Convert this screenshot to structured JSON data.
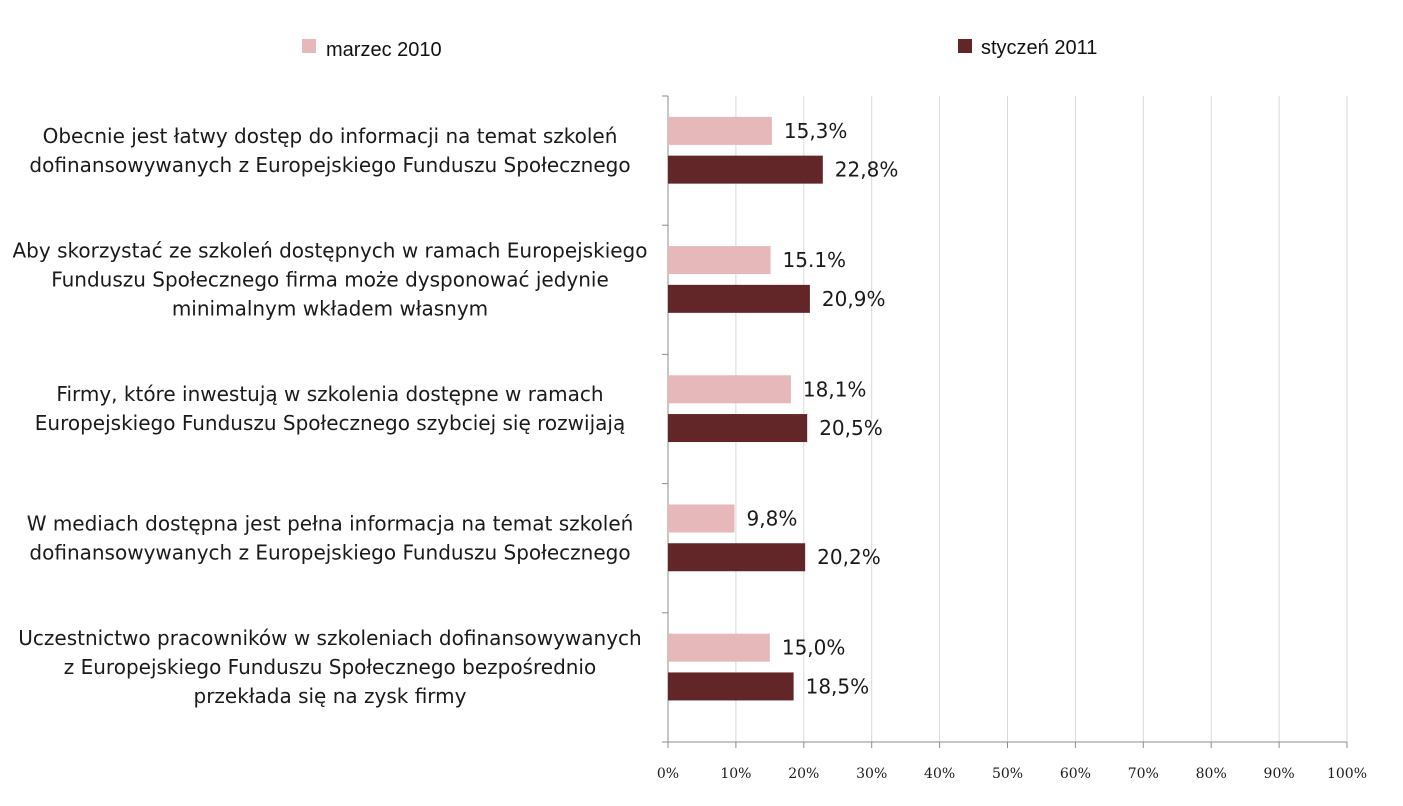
{
  "chart_data": {
    "type": "bar",
    "orientation": "horizontal",
    "categories": [
      [
        "Obecnie jest łatwy dostęp do informacji na temat szkoleń",
        "dofinansowywanych z Europejskiego Funduszu Społecznego"
      ],
      [
        "Aby skorzystać ze szkoleń dostępnych w ramach Europejskiego",
        "Funduszu Społecznego firma może dysponować jedynie",
        "minimalnym wkładem własnym"
      ],
      [
        "Firmy, które inwestują w szkolenia dostępne w ramach",
        "Europejskiego Funduszu Społecznego szybciej się rozwijają"
      ],
      [
        "W mediach dostępna jest pełna informacja na temat szkoleń",
        "dofinansowywanych z Europejskiego Funduszu Społecznego"
      ],
      [
        "Uczestnictwo pracowników w szkoleniach dofinansowywanych",
        "z Europejskiego Funduszu Społecznego bezpośrednio",
        "przekłada się na zysk firmy"
      ]
    ],
    "series": [
      {
        "name": "marzec 2010",
        "color": "#e6b8b9",
        "values": [
          15.3,
          15.1,
          18.1,
          9.8,
          15.0
        ],
        "labels": [
          "15,3%",
          "15.1%",
          "18,1%",
          "9,8%",
          "15,0%"
        ]
      },
      {
        "name": "styczeń 2011",
        "color": "#632628",
        "values": [
          22.8,
          20.9,
          20.5,
          20.2,
          18.5
        ],
        "labels": [
          "22,8%",
          "20,9%",
          "20,5%",
          "20,2%",
          "18,5%"
        ]
      }
    ],
    "xlim": [
      0,
      100
    ],
    "xticks": [
      "0%",
      "10%",
      "20%",
      "30%",
      "40%",
      "50%",
      "60%",
      "70%",
      "80%",
      "90%",
      "100%"
    ],
    "grid": true,
    "legend_position": "top"
  }
}
